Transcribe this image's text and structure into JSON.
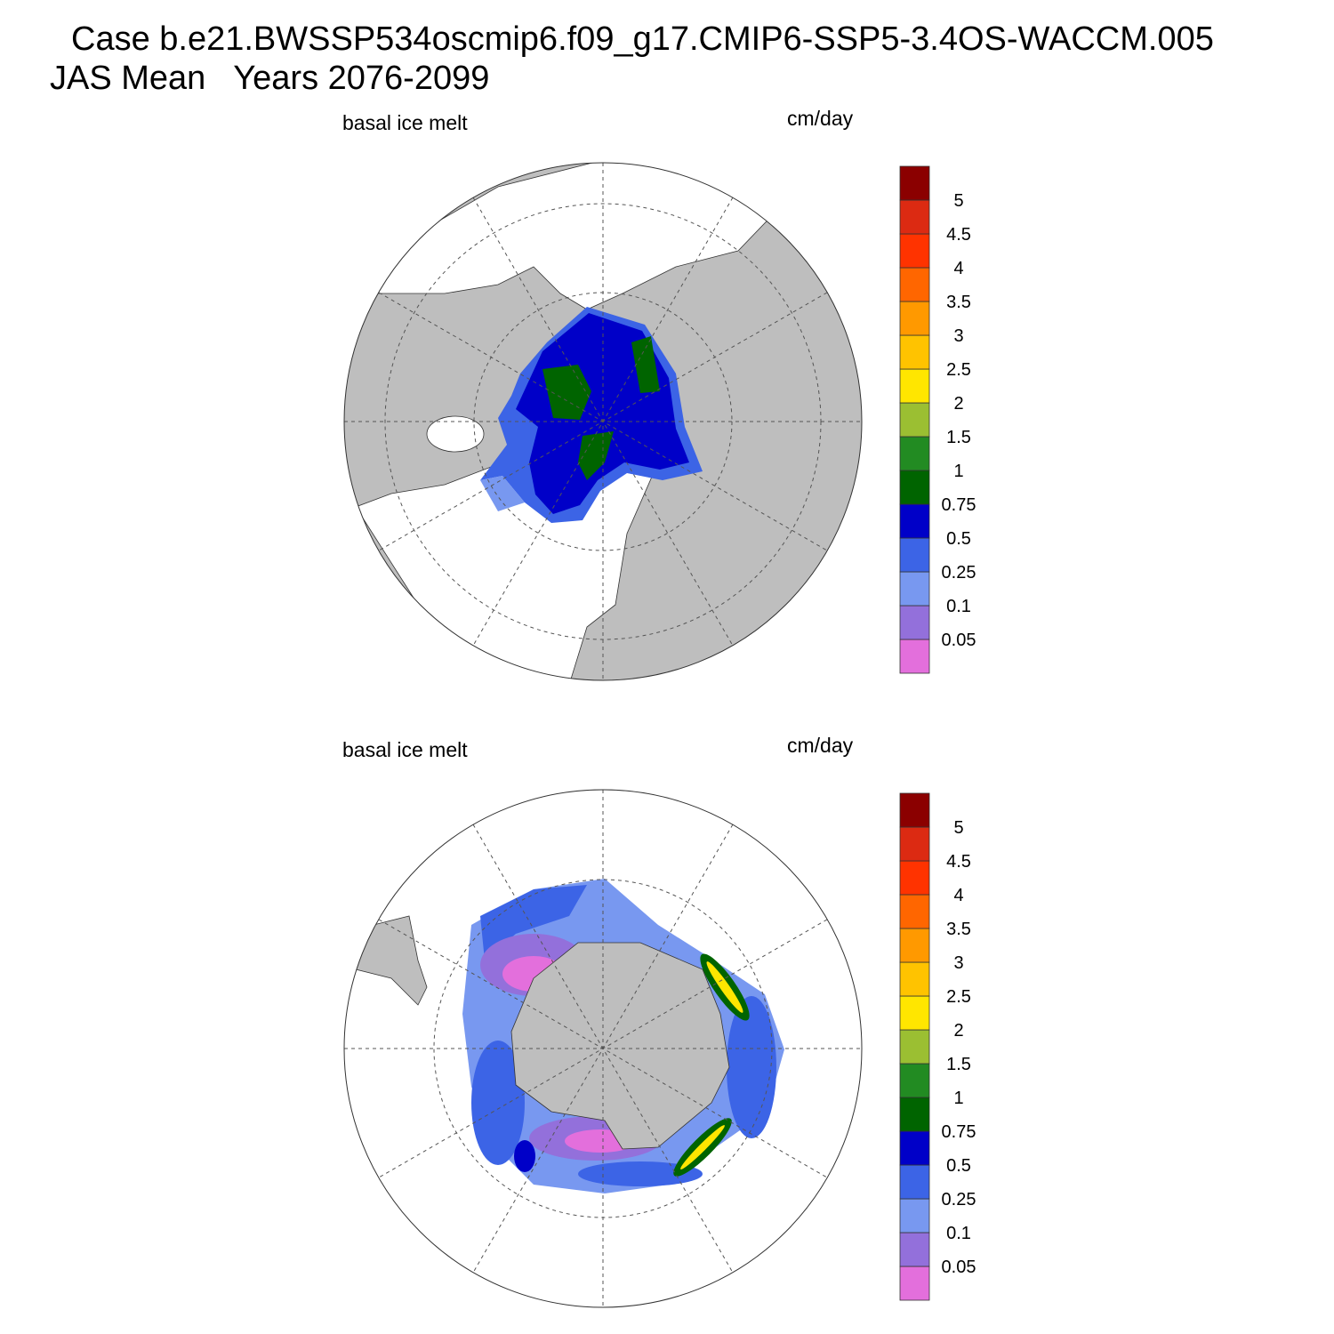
{
  "header": {
    "title": "Case b.e21.BWSSP534oscmip6.f09_g17.CMIP6-SSP5-3.4OS-WACCM.005",
    "subtitle": "JAS Mean   Years 2076-2099"
  },
  "panels": [
    {
      "left_label": "basal ice melt",
      "right_label": "cm/day",
      "colorbar": {
        "levels": [
          0.05,
          0.1,
          0.25,
          0.5,
          0.75,
          1,
          1.5,
          2,
          2.5,
          3,
          3.5,
          4,
          4.5,
          5
        ],
        "colors": [
          "#e36fdc",
          "#9370db",
          "#7898f0",
          "#3c64e6",
          "#0000c8",
          "#006400",
          "#228b22",
          "#9bbf32",
          "#ffe600",
          "#ffc300",
          "#ff9900",
          "#ff6600",
          "#ff3300",
          "#dc2a12",
          "#8b0000"
        ]
      }
    },
    {
      "left_label": "basal ice melt",
      "right_label": "cm/day",
      "colorbar": {
        "levels": [
          0.05,
          0.1,
          0.25,
          0.5,
          0.75,
          1,
          1.5,
          2,
          2.5,
          3,
          3.5,
          4,
          4.5,
          5
        ],
        "colors": [
          "#e36fdc",
          "#9370db",
          "#7898f0",
          "#3c64e6",
          "#0000c8",
          "#006400",
          "#228b22",
          "#9bbf32",
          "#ffe600",
          "#ffc300",
          "#ff9900",
          "#ff6600",
          "#ff3300",
          "#dc2a12",
          "#8b0000"
        ]
      }
    }
  ]
}
